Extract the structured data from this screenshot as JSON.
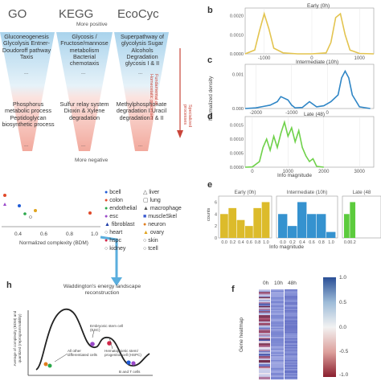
{
  "panel_a": {
    "headers": [
      "GO",
      "KEGG",
      "EcoCyc"
    ],
    "more_positive": "More positive",
    "more_negative": "More negative",
    "side_top": "Fundamental or Homeostatic processes",
    "side_bottom": "Specialized processes",
    "columns": [
      {
        "top": "Gluconeogenesis Glycolysis Entner-Doudoroff pathway Taxis",
        "bottom": "Phosphorus metabolic process Peptidoglycan biosynthetic process"
      },
      {
        "top": "Glycosis / Fructose/mannose metabolism Bacterial chemotaxis",
        "bottom": "Sulfur relay system Dioxin & Xylene degradation"
      },
      {
        "top": "Superpathway of glycolysis Sugar Alcohols Degradation glycosis I & II",
        "bottom": "Methylphosphonate degradation I Uracil degradation I & II"
      }
    ],
    "dots": "...",
    "colors": {
      "top": "#b9dcef",
      "bottom": "#f3b7ad"
    }
  },
  "panel_b": {
    "label": "b",
    "title": "Early (0h)",
    "chart_data": {
      "type": "line",
      "title": "Early (0h)",
      "x": [
        -1400,
        -1200,
        -1100,
        -1000,
        -900,
        -800,
        -600,
        -300,
        0,
        300,
        400,
        500,
        600,
        700,
        800,
        1000,
        1300
      ],
      "values": [
        0,
        0.0002,
        0.0012,
        0.0021,
        0.0013,
        0.0003,
        5e-05,
        0,
        0,
        5e-05,
        0.0006,
        0.0019,
        0.0021,
        0.001,
        0.0002,
        2e-05,
        0
      ],
      "yticks": [
        "0.0000",
        "0.0010",
        "0.0020"
      ],
      "xticks": [
        "-1000",
        "0",
        "1000"
      ],
      "color": "#e3c44f"
    }
  },
  "panel_c": {
    "label": "c",
    "title": "Intermediate (10h)",
    "ylabel": "Normalized density",
    "chart_data": {
      "type": "line",
      "title": "Intermediate (10h)",
      "x": [
        -2300,
        -2000,
        -1800,
        -1600,
        -1400,
        -1300,
        -1100,
        -1000,
        -900,
        -700,
        -500,
        -300,
        -100,
        100,
        300,
        400,
        500,
        600,
        700,
        900,
        1200
      ],
      "values": [
        0,
        2e-05,
        6e-05,
        0.0001,
        0.0002,
        0.00035,
        0.00025,
        0.0001,
        2e-05,
        3e-05,
        0.0002,
        5e-05,
        8e-05,
        0.0002,
        0.0004,
        0.0009,
        0.0011,
        0.0009,
        0.0004,
        5e-05,
        0
      ],
      "yticks": [
        "0.000",
        "0.001"
      ],
      "xticks": [
        "-2000",
        "-1000",
        "0"
      ],
      "color": "#2f86c6"
    }
  },
  "panel_d": {
    "label": "d",
    "title": "Late (48)",
    "xlabel": "Info magnitude",
    "chart_data": {
      "type": "line",
      "title": "Late (48)",
      "x": [
        -200,
        0,
        200,
        300,
        400,
        500,
        600,
        700,
        800,
        900,
        1000,
        1100,
        1200,
        1300,
        1400,
        1500,
        1600,
        1700,
        1800,
        2000
      ],
      "values": [
        0,
        1e-05,
        0.0002,
        0.0007,
        0.001,
        0.0006,
        0.0011,
        0.0007,
        0.0012,
        0.0016,
        0.0011,
        0.0014,
        0.0009,
        0.0013,
        0.0007,
        0.0004,
        0.0002,
        0.0003,
        3e-05,
        0
      ],
      "yticks": [
        "0.0000",
        "0.0005",
        "0.0010",
        "0.0015"
      ],
      "xticks": [
        "0",
        "1000",
        "2000",
        "3000"
      ],
      "color": "#6fd14a"
    }
  },
  "panel_e": {
    "label": "e",
    "ylabel": "counts",
    "xlabel": "Info magnitude",
    "chart_data": [
      {
        "type": "bar",
        "title": "Early (0h)",
        "categories": [
          "0.0",
          "0.2",
          "0.4",
          "0.6",
          "0.8",
          "1.0"
        ],
        "values": [
          4,
          5,
          3,
          2,
          5,
          6
        ],
        "color": "#dcbb2b",
        "yticks": [
          "0",
          "2",
          "4",
          "6"
        ]
      },
      {
        "type": "bar",
        "title": "Intermediate (10h)",
        "categories": [
          "0.0",
          "0.2",
          "0.4",
          "0.6",
          "0.8",
          "1.0"
        ],
        "values": [
          4,
          2,
          6,
          4,
          4,
          1
        ],
        "color": "#3592cf"
      },
      {
        "type": "bar",
        "title": "Late (48",
        "categories": [
          "0.0",
          "0.2"
        ],
        "values": [
          4,
          6
        ],
        "color": "#5ccb3d"
      }
    ]
  },
  "panel_g": {
    "xlabel": "Normalized complexity (BDM)",
    "xticks": [
      "0.4",
      "0.6",
      "0.8",
      "1.0"
    ],
    "legend": [
      {
        "name": "bcell",
        "symbol": "●",
        "color": "#1f5bd6"
      },
      {
        "name": "liver",
        "symbol": "△",
        "color": "#555555"
      },
      {
        "name": "colon",
        "symbol": "●",
        "color": "#e04a2a"
      },
      {
        "name": "lung",
        "symbol": "▢",
        "color": "#555555"
      },
      {
        "name": "endothelial",
        "symbol": "●",
        "color": "#2aa84a"
      },
      {
        "name": "macrophage",
        "symbol": "▲",
        "color": "#555555"
      },
      {
        "name": "esc",
        "symbol": "●",
        "color": "#9a48c9"
      },
      {
        "name": "muscleSkel",
        "symbol": "■",
        "color": "#3b5bd0"
      },
      {
        "name": "fibroblast",
        "symbol": "▲",
        "color": "#1f3ea8"
      },
      {
        "name": "neuron",
        "symbol": "●",
        "color": "#e07d1e"
      },
      {
        "name": "heart",
        "symbol": "○",
        "color": "#555555"
      },
      {
        "name": "ovary",
        "symbol": "▲",
        "color": "#e0a41e"
      },
      {
        "name": "hspc",
        "symbol": "●",
        "color": "#d2284a"
      },
      {
        "name": "skin",
        "symbol": "○",
        "color": "#555555"
      },
      {
        "name": "kidney",
        "symbol": "○",
        "color": "#555555"
      },
      {
        "name": "tcell",
        "symbol": "○",
        "color": "#555555"
      }
    ]
  },
  "panel_h": {
    "label": "h",
    "title": "Waddington's energy landscape reconstruction",
    "ylabel": "Average of complexity (BDM) and quantized (reprogrammability)",
    "annotations": [
      "Embryonic stem cell (ESC)",
      "Hematopoietic stem/ progenitor cell (HSPC)",
      "All other differentiated cells",
      "B and T cells"
    ]
  },
  "panel_f": {
    "label": "f",
    "columns": [
      "0h",
      "10h",
      "48h"
    ],
    "ylabel": "Gene heatmap",
    "colorbar_ticks": [
      "1.0",
      "0.5",
      "0.0",
      "-0.5",
      "-1.0"
    ]
  }
}
